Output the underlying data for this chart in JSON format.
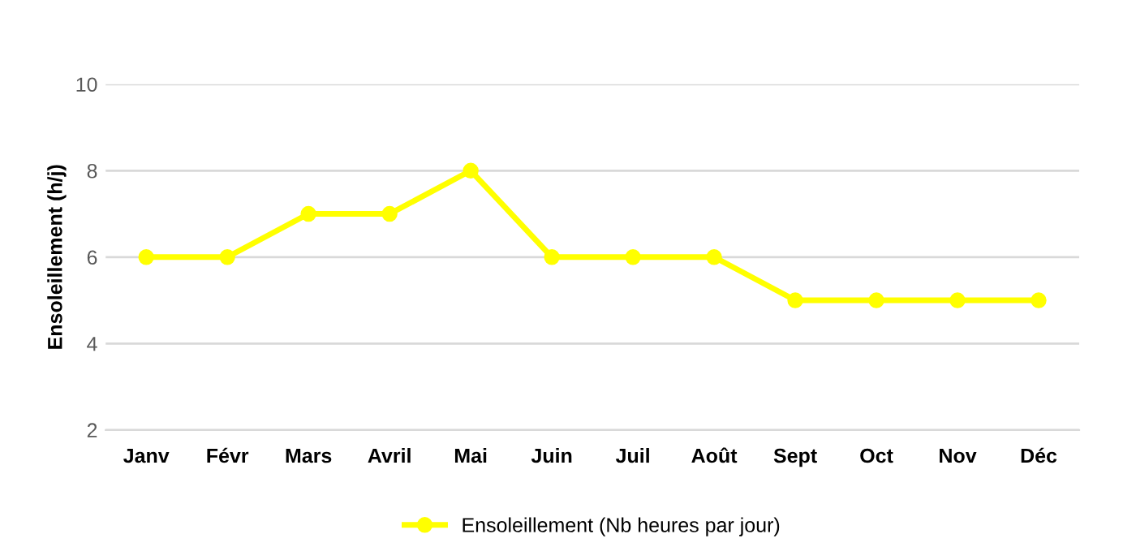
{
  "chart_data": {
    "type": "line",
    "ylabel": "Ensoleillement (h/j)",
    "categories": [
      "Janv",
      "Févr",
      "Mars",
      "Avril",
      "Mai",
      "Juin",
      "Juil",
      "Août",
      "Sept",
      "Oct",
      "Nov",
      "Déc"
    ],
    "series": [
      {
        "name": "Ensoleillement (Nb heures par jour)",
        "color": "#ffff00",
        "values": [
          6,
          6,
          7,
          7,
          8,
          6,
          6,
          6,
          5,
          5,
          5,
          5
        ]
      }
    ],
    "ylim": [
      2,
      10
    ],
    "yticks": [
      2,
      4,
      6,
      8,
      10
    ],
    "grid": "y",
    "legend": "bottom",
    "marker": "circle",
    "line_style": "solid"
  }
}
